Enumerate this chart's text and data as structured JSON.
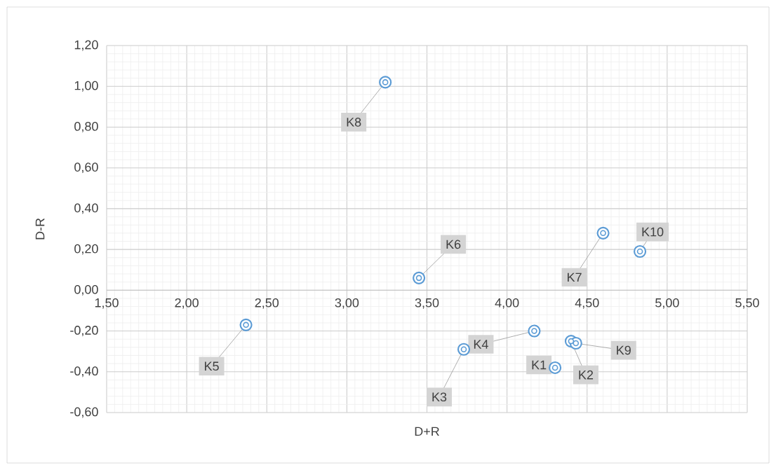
{
  "chart_data": {
    "type": "scatter",
    "xlabel": "D+R",
    "ylabel": "D-R",
    "x": [
      4.3,
      4.4,
      3.73,
      4.17,
      2.37,
      3.45,
      4.6,
      3.24,
      4.43,
      4.83
    ],
    "series": [
      {
        "color": "#5b9bd5",
        "values": [
          -0.38,
          -0.25,
          -0.29,
          -0.2,
          -0.17,
          0.06,
          0.28,
          1.02,
          -0.26,
          0.19
        ]
      }
    ],
    "annotations": [
      {
        "text": "K1",
        "x": 4.3,
        "y": -0.38
      },
      {
        "text": "K2",
        "x": 4.4,
        "y": -0.25
      },
      {
        "text": "K3",
        "x": 3.73,
        "y": -0.29
      },
      {
        "text": "K4",
        "x": 4.17,
        "y": -0.2
      },
      {
        "text": "K5",
        "x": 2.37,
        "y": -0.17
      },
      {
        "text": "K6",
        "x": 3.45,
        "y": 0.06
      },
      {
        "text": "K7",
        "x": 4.6,
        "y": 0.28
      },
      {
        "text": "K8",
        "x": 3.24,
        "y": 1.02
      },
      {
        "text": "K9",
        "x": 4.43,
        "y": -0.26
      },
      {
        "text": "K10",
        "x": 4.83,
        "y": 0.19
      }
    ],
    "xlim": [
      1.5,
      5.5
    ],
    "ylim": [
      -0.6,
      1.2
    ],
    "xticks": [
      {
        "value": 1.5,
        "label": "1,50"
      },
      {
        "value": 2.0,
        "label": "2,00"
      },
      {
        "value": 2.5,
        "label": "2,50"
      },
      {
        "value": 3.0,
        "label": "3,00"
      },
      {
        "value": 3.5,
        "label": "3,50"
      },
      {
        "value": 4.0,
        "label": "4,00"
      },
      {
        "value": 4.5,
        "label": "4,50"
      },
      {
        "value": 5.0,
        "label": "5,00"
      },
      {
        "value": 5.5,
        "label": "5,50"
      }
    ],
    "yticks": [
      {
        "value": -0.6,
        "label": "-0,60"
      },
      {
        "value": -0.4,
        "label": "-0,40"
      },
      {
        "value": -0.2,
        "label": "-0,20"
      },
      {
        "value": 0.0,
        "label": "0,00"
      },
      {
        "value": 0.2,
        "label": "0,20"
      },
      {
        "value": 0.4,
        "label": "0,40"
      },
      {
        "value": 0.6,
        "label": "0,60"
      },
      {
        "value": 0.8,
        "label": "0,80"
      },
      {
        "value": 1.0,
        "label": "1,00"
      },
      {
        "value": 1.2,
        "label": "1,20"
      }
    ],
    "grid": true,
    "marker": "circle"
  }
}
